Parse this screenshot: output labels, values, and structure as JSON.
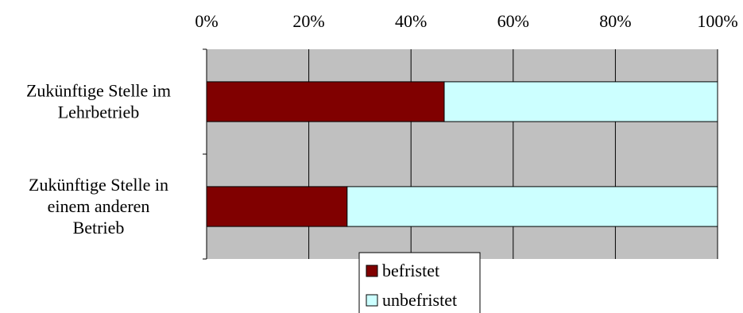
{
  "chart_data": {
    "type": "bar",
    "orientation": "horizontal",
    "stacking": "percent",
    "categories": [
      [
        "Zukünftige Stelle im",
        "Lehrbetrieb"
      ],
      [
        "Zukünftige Stelle in",
        "einem anderen",
        "Betrieb"
      ]
    ],
    "series": [
      {
        "name": "befristet",
        "color": "#800000",
        "values": [
          46.5,
          27.5
        ]
      },
      {
        "name": "unbefristet",
        "color": "#ccffff",
        "values": [
          53.5,
          72.5
        ]
      }
    ],
    "x_ticks": [
      "0%",
      "20%",
      "40%",
      "60%",
      "80%",
      "100%"
    ],
    "xlim": [
      0,
      100
    ],
    "plot_background": "#c0c0c0",
    "grid": true,
    "legend_position": "bottom"
  }
}
